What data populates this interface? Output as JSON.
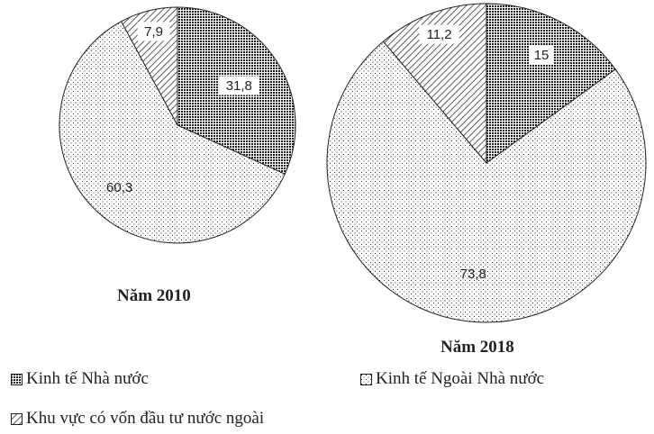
{
  "chart_data": [
    {
      "type": "pie",
      "title": "Năm 2010",
      "categories": [
        "Kinh tế Nhà nước",
        "Kinh tế Ngoài Nhà nước",
        "Khu vực có vốn đầu tư nước ngoài"
      ],
      "values": [
        31.8,
        60.3,
        7.9
      ],
      "labels": [
        "31,8",
        "60,3",
        "7,9"
      ]
    },
    {
      "type": "pie",
      "title": "Năm 2018",
      "categories": [
        "Kinh tế Nhà nước",
        "Kinh tế Ngoài Nhà nước",
        "Khu vực có vốn đầu tư nước ngoài"
      ],
      "values": [
        15,
        73.8,
        11.2
      ],
      "labels": [
        "15",
        "73,8",
        "11,2"
      ]
    }
  ],
  "legend": [
    {
      "label": "Kinh tế Nhà nước",
      "pattern": "dark-dots"
    },
    {
      "label": "Kinh tế Ngoài Nhà nước",
      "pattern": "light-dots"
    },
    {
      "label": "Khu vực có vốn đầu tư nước ngoài",
      "pattern": "hatch"
    }
  ],
  "colors": {
    "outline": "#222222",
    "background": "#ffffff"
  }
}
